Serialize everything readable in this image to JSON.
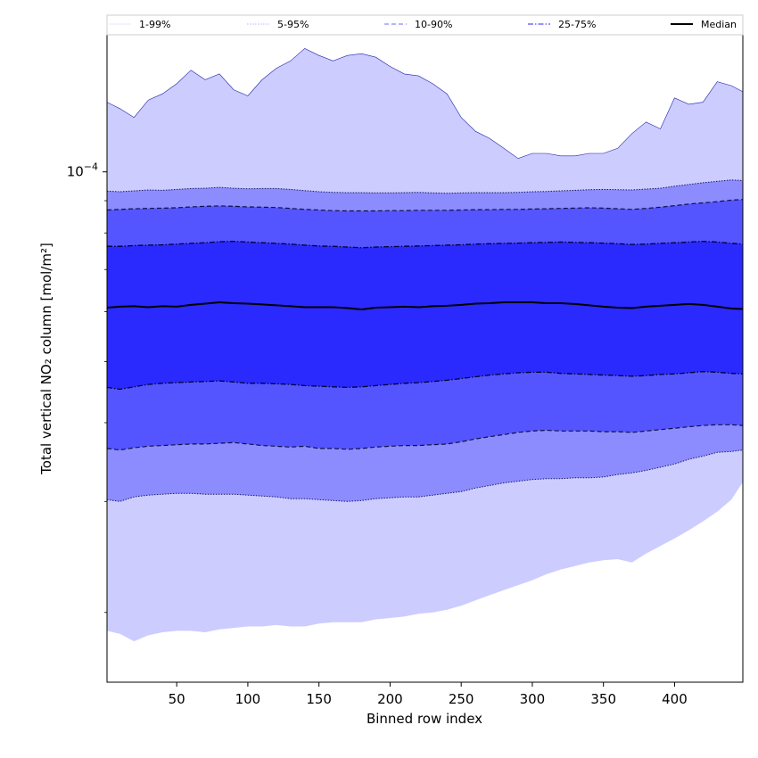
{
  "chart_data": {
    "type": "area",
    "title": "",
    "xlabel": "Binned row index",
    "ylabel": "Total vertical NO₂ column [mol/m²]",
    "y_scale": "log",
    "xlim": [
      1,
      448
    ],
    "ylim": [
      1.55e-05,
      0.000165
    ],
    "x_ticks": [
      50,
      100,
      150,
      200,
      250,
      300,
      350,
      400
    ],
    "x_tick_labels": [
      "50",
      "100",
      "150",
      "200",
      "250",
      "300",
      "350",
      "400"
    ],
    "y_tick_base": "10",
    "y_tick_exponent": "−4",
    "y_tick_value": 0.0001,
    "y_minor_ticks": [
      2e-05,
      3e-05,
      4e-05,
      5e-05,
      6e-05,
      7e-05,
      8e-05,
      9e-05
    ],
    "legend_position": "top",
    "legend": [
      {
        "label": "1-99%",
        "style": "solid-thin",
        "color": "#d0d0ff"
      },
      {
        "label": "5-95%",
        "style": "dotted-thin",
        "color": "#9a9aff"
      },
      {
        "label": "10-90%",
        "style": "dashed",
        "color": "#8a8aff"
      },
      {
        "label": "25-75%",
        "style": "dashdot",
        "color": "#5050ff"
      },
      {
        "label": "Median",
        "style": "solid-thick",
        "color": "#000000"
      }
    ],
    "band_colors": [
      "#ccccff",
      "#8c8cff",
      "#5555ff",
      "#2a2aff"
    ],
    "x": [
      1,
      10,
      20,
      30,
      40,
      50,
      60,
      70,
      80,
      90,
      100,
      110,
      120,
      130,
      140,
      150,
      160,
      170,
      180,
      190,
      200,
      210,
      220,
      230,
      240,
      250,
      260,
      270,
      280,
      290,
      300,
      310,
      320,
      330,
      340,
      350,
      360,
      370,
      380,
      390,
      400,
      410,
      420,
      430,
      440,
      448
    ],
    "series": [
      {
        "name": "1-99%",
        "lower": [
          1.87e-05,
          1.85e-05,
          1.8e-05,
          1.84e-05,
          1.86e-05,
          1.87e-05,
          1.87e-05,
          1.86e-05,
          1.88e-05,
          1.89e-05,
          1.9e-05,
          1.9e-05,
          1.91e-05,
          1.9e-05,
          1.9e-05,
          1.92e-05,
          1.93e-05,
          1.93e-05,
          1.93e-05,
          1.95e-05,
          1.96e-05,
          1.97e-05,
          1.99e-05,
          2e-05,
          2.02e-05,
          2.05e-05,
          2.09e-05,
          2.13e-05,
          2.17e-05,
          2.21e-05,
          2.25e-05,
          2.3e-05,
          2.34e-05,
          2.37e-05,
          2.4e-05,
          2.42e-05,
          2.43e-05,
          2.4e-05,
          2.48e-05,
          2.55e-05,
          2.62e-05,
          2.7e-05,
          2.79e-05,
          2.89e-05,
          3.02e-05,
          3.22e-05
        ],
        "upper": [
          0.000129,
          0.000126,
          0.000122,
          0.00013,
          0.000133,
          0.000138,
          0.000145,
          0.00014,
          0.000143,
          0.000135,
          0.000132,
          0.00014,
          0.000146,
          0.00015,
          0.000157,
          0.000153,
          0.00015,
          0.000153,
          0.000154,
          0.000152,
          0.000147,
          0.000143,
          0.000142,
          0.000138,
          0.000133,
          0.000122,
          0.000116,
          0.000113,
          0.000109,
          0.000105,
          0.000107,
          0.000107,
          0.000106,
          0.000106,
          0.000107,
          0.000107,
          0.000109,
          0.000115,
          0.00012,
          0.000117,
          0.000131,
          0.000128,
          0.000129,
          0.000139,
          0.000137,
          0.000134
        ]
      },
      {
        "name": "5-95%",
        "lower": [
          3.02e-05,
          3e-05,
          3.05e-05,
          3.07e-05,
          3.08e-05,
          3.09e-05,
          3.09e-05,
          3.08e-05,
          3.08e-05,
          3.08e-05,
          3.07e-05,
          3.06e-05,
          3.05e-05,
          3.03e-05,
          3.03e-05,
          3.02e-05,
          3.01e-05,
          3e-05,
          3.01e-05,
          3.03e-05,
          3.04e-05,
          3.05e-05,
          3.05e-05,
          3.07e-05,
          3.09e-05,
          3.11e-05,
          3.15e-05,
          3.18e-05,
          3.21e-05,
          3.23e-05,
          3.25e-05,
          3.26e-05,
          3.26e-05,
          3.27e-05,
          3.27e-05,
          3.28e-05,
          3.31e-05,
          3.33e-05,
          3.36e-05,
          3.4e-05,
          3.44e-05,
          3.5e-05,
          3.54e-05,
          3.59e-05,
          3.6e-05,
          3.62e-05
        ],
        "upper": [
          9.32e-05,
          9.3e-05,
          9.33e-05,
          9.36e-05,
          9.35e-05,
          9.38e-05,
          9.41e-05,
          9.42e-05,
          9.45e-05,
          9.42e-05,
          9.4e-05,
          9.41e-05,
          9.41e-05,
          9.38e-05,
          9.34e-05,
          9.3e-05,
          9.28e-05,
          9.27e-05,
          9.27e-05,
          9.26e-05,
          9.26e-05,
          9.27e-05,
          9.28e-05,
          9.26e-05,
          9.25e-05,
          9.26e-05,
          9.27e-05,
          9.27e-05,
          9.27e-05,
          9.28e-05,
          9.3e-05,
          9.31e-05,
          9.33e-05,
          9.35e-05,
          9.37e-05,
          9.38e-05,
          9.37e-05,
          9.36e-05,
          9.39e-05,
          9.42e-05,
          9.49e-05,
          9.55e-05,
          9.61e-05,
          9.66e-05,
          9.71e-05,
          9.69e-05
        ]
      },
      {
        "name": "10-90%",
        "lower": [
          3.64e-05,
          3.62e-05,
          3.65e-05,
          3.67e-05,
          3.68e-05,
          3.69e-05,
          3.7e-05,
          3.7e-05,
          3.71e-05,
          3.72e-05,
          3.7e-05,
          3.68e-05,
          3.67e-05,
          3.66e-05,
          3.67e-05,
          3.64e-05,
          3.64e-05,
          3.63e-05,
          3.64e-05,
          3.66e-05,
          3.67e-05,
          3.68e-05,
          3.68e-05,
          3.69e-05,
          3.7e-05,
          3.73e-05,
          3.77e-05,
          3.8e-05,
          3.83e-05,
          3.86e-05,
          3.88e-05,
          3.89e-05,
          3.88e-05,
          3.88e-05,
          3.88e-05,
          3.87e-05,
          3.87e-05,
          3.86e-05,
          3.88e-05,
          3.9e-05,
          3.92e-05,
          3.94e-05,
          3.96e-05,
          3.97e-05,
          3.97e-05,
          3.96e-05
        ],
        "upper": [
          8.7e-05,
          8.72e-05,
          8.74e-05,
          8.75e-05,
          8.76e-05,
          8.77e-05,
          8.8e-05,
          8.82e-05,
          8.83e-05,
          8.82e-05,
          8.8e-05,
          8.79e-05,
          8.78e-05,
          8.75e-05,
          8.72e-05,
          8.7e-05,
          8.68e-05,
          8.67e-05,
          8.67e-05,
          8.67e-05,
          8.68e-05,
          8.68e-05,
          8.69e-05,
          8.69e-05,
          8.69e-05,
          8.7e-05,
          8.71e-05,
          8.71e-05,
          8.72e-05,
          8.72e-05,
          8.73e-05,
          8.74e-05,
          8.75e-05,
          8.76e-05,
          8.77e-05,
          8.76e-05,
          8.74e-05,
          8.72e-05,
          8.75e-05,
          8.79e-05,
          8.84e-05,
          8.89e-05,
          8.93e-05,
          8.97e-05,
          9.02e-05,
          9.04e-05
        ]
      },
      {
        "name": "25-75%",
        "lower": [
          4.55e-05,
          4.52e-05,
          4.56e-05,
          4.6e-05,
          4.62e-05,
          4.63e-05,
          4.64e-05,
          4.65e-05,
          4.66e-05,
          4.64e-05,
          4.62e-05,
          4.62e-05,
          4.61e-05,
          4.6e-05,
          4.58e-05,
          4.57e-05,
          4.56e-05,
          4.55e-05,
          4.56e-05,
          4.58e-05,
          4.6e-05,
          4.62e-05,
          4.63e-05,
          4.65e-05,
          4.67e-05,
          4.7e-05,
          4.73e-05,
          4.76e-05,
          4.78e-05,
          4.8e-05,
          4.81e-05,
          4.81e-05,
          4.79e-05,
          4.78e-05,
          4.77e-05,
          4.76e-05,
          4.75e-05,
          4.74e-05,
          4.75e-05,
          4.77e-05,
          4.78e-05,
          4.8e-05,
          4.82e-05,
          4.81e-05,
          4.79e-05,
          4.78e-05
        ],
        "upper": [
          7.62e-05,
          7.62e-05,
          7.64e-05,
          7.65e-05,
          7.66e-05,
          7.68e-05,
          7.7e-05,
          7.72e-05,
          7.75e-05,
          7.76e-05,
          7.74e-05,
          7.72e-05,
          7.7e-05,
          7.68e-05,
          7.65e-05,
          7.63e-05,
          7.62e-05,
          7.6e-05,
          7.58e-05,
          7.6e-05,
          7.61e-05,
          7.62e-05,
          7.63e-05,
          7.64e-05,
          7.65e-05,
          7.66e-05,
          7.68e-05,
          7.69e-05,
          7.7e-05,
          7.71e-05,
          7.72e-05,
          7.73e-05,
          7.74e-05,
          7.73e-05,
          7.72e-05,
          7.71e-05,
          7.69e-05,
          7.67e-05,
          7.68e-05,
          7.7e-05,
          7.72e-05,
          7.74e-05,
          7.76e-05,
          7.74e-05,
          7.7e-05,
          7.68e-05
        ]
      },
      {
        "name": "Median",
        "values": [
          6.09e-05,
          6.11e-05,
          6.12e-05,
          6.1e-05,
          6.12e-05,
          6.11e-05,
          6.15e-05,
          6.18e-05,
          6.21e-05,
          6.19e-05,
          6.18e-05,
          6.16e-05,
          6.14e-05,
          6.12e-05,
          6.1e-05,
          6.1e-05,
          6.1e-05,
          6.08e-05,
          6.05e-05,
          6.09e-05,
          6.1e-05,
          6.11e-05,
          6.1e-05,
          6.12e-05,
          6.13e-05,
          6.15e-05,
          6.18e-05,
          6.19e-05,
          6.21e-05,
          6.21e-05,
          6.21e-05,
          6.19e-05,
          6.19e-05,
          6.17e-05,
          6.14e-05,
          6.11e-05,
          6.09e-05,
          6.08e-05,
          6.11e-05,
          6.13e-05,
          6.15e-05,
          6.17e-05,
          6.15e-05,
          6.11e-05,
          6.07e-05,
          6.06e-05
        ]
      }
    ]
  }
}
